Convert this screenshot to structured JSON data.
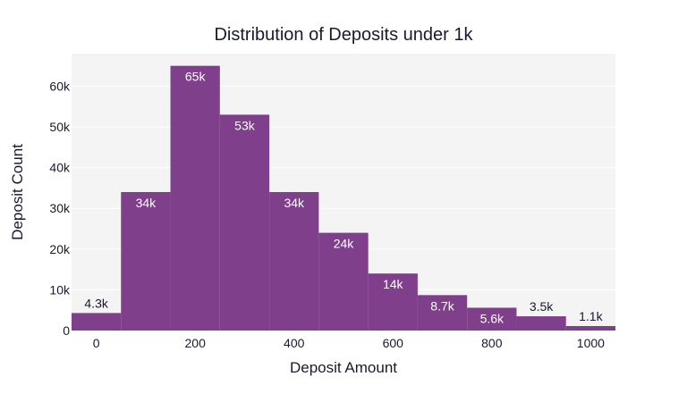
{
  "chart_data": {
    "type": "bar",
    "title": "Distribution of Deposits under 1k",
    "xlabel": "Deposit Amount",
    "ylabel": "Deposit Count",
    "bins": [
      {
        "x0": -50,
        "x1": 50,
        "value": 4300,
        "label": "4.3k"
      },
      {
        "x0": 50,
        "x1": 150,
        "value": 34000,
        "label": "34k"
      },
      {
        "x0": 150,
        "x1": 250,
        "value": 65000,
        "label": "65k"
      },
      {
        "x0": 250,
        "x1": 350,
        "value": 53000,
        "label": "53k"
      },
      {
        "x0": 350,
        "x1": 450,
        "value": 34000,
        "label": "34k"
      },
      {
        "x0": 450,
        "x1": 550,
        "value": 24000,
        "label": "24k"
      },
      {
        "x0": 550,
        "x1": 650,
        "value": 14000,
        "label": "14k"
      },
      {
        "x0": 650,
        "x1": 750,
        "value": 8700,
        "label": "8.7k"
      },
      {
        "x0": 750,
        "x1": 850,
        "value": 5600,
        "label": "5.6k"
      },
      {
        "x0": 850,
        "x1": 950,
        "value": 3500,
        "label": "3.5k"
      },
      {
        "x0": 950,
        "x1": 1050,
        "value": 1100,
        "label": "1.1k"
      }
    ],
    "xlim": [
      -50,
      1050
    ],
    "ylim": [
      0,
      68000
    ],
    "x_ticks": [
      {
        "value": 0,
        "label": "0"
      },
      {
        "value": 200,
        "label": "200"
      },
      {
        "value": 400,
        "label": "400"
      },
      {
        "value": 600,
        "label": "600"
      },
      {
        "value": 800,
        "label": "800"
      },
      {
        "value": 1000,
        "label": "1000"
      }
    ],
    "y_ticks": [
      {
        "value": 0,
        "label": "0"
      },
      {
        "value": 10000,
        "label": "10k"
      },
      {
        "value": 20000,
        "label": "20k"
      },
      {
        "value": 30000,
        "label": "30k"
      },
      {
        "value": 40000,
        "label": "40k"
      },
      {
        "value": 50000,
        "label": "50k"
      },
      {
        "value": 60000,
        "label": "60k"
      }
    ],
    "grid": true,
    "legend": "none",
    "colors": {
      "bar": "#7f3f8b",
      "plot_bg": "#f4f4f5",
      "grid": "#ffffff",
      "label_inside": "#ffffff",
      "label_outside": "#1a1a2e"
    }
  }
}
